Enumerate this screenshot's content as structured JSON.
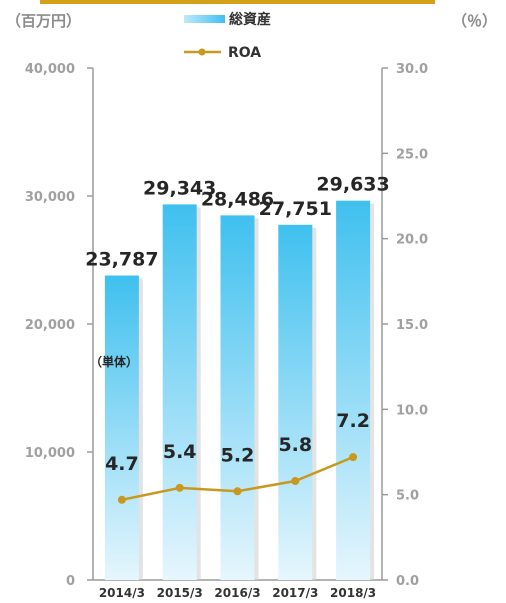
{
  "chart_data": {
    "type": "bar",
    "categories": [
      "2014/3",
      "2015/3",
      "2016/3",
      "2017/3",
      "2018/3"
    ],
    "series": [
      {
        "name": "総資産",
        "type": "bar",
        "axis": "left",
        "values": [
          23787,
          29343,
          28486,
          27751,
          29633
        ],
        "labels": [
          "23,787",
          "29,343",
          "28,486",
          "27,751",
          "29,633"
        ]
      },
      {
        "name": "ROA",
        "type": "line",
        "axis": "right",
        "values": [
          4.7,
          5.4,
          5.2,
          5.8,
          7.2
        ],
        "labels": [
          "4.7",
          "5.4",
          "5.2",
          "5.8",
          "7.2"
        ]
      }
    ],
    "left_unit": "（百万円）",
    "right_unit": "（％）",
    "left_ylim": [
      0,
      40000
    ],
    "right_ylim": [
      0,
      30
    ],
    "left_ticks": [
      "0",
      "10,000",
      "20,000",
      "30,000",
      "40,000"
    ],
    "right_ticks": [
      "0.0",
      "5.0",
      "10.0",
      "15.0",
      "20.0",
      "25.0",
      "30.0"
    ],
    "annotation": "（単体）",
    "legend_position": "top-center",
    "colors": {
      "bar_top": "#3fc0ef",
      "bar_bottom": "#e6f6fd",
      "line": "#c9981f",
      "header_bar": "#d4a017",
      "axis": "#9a9a9a"
    }
  }
}
